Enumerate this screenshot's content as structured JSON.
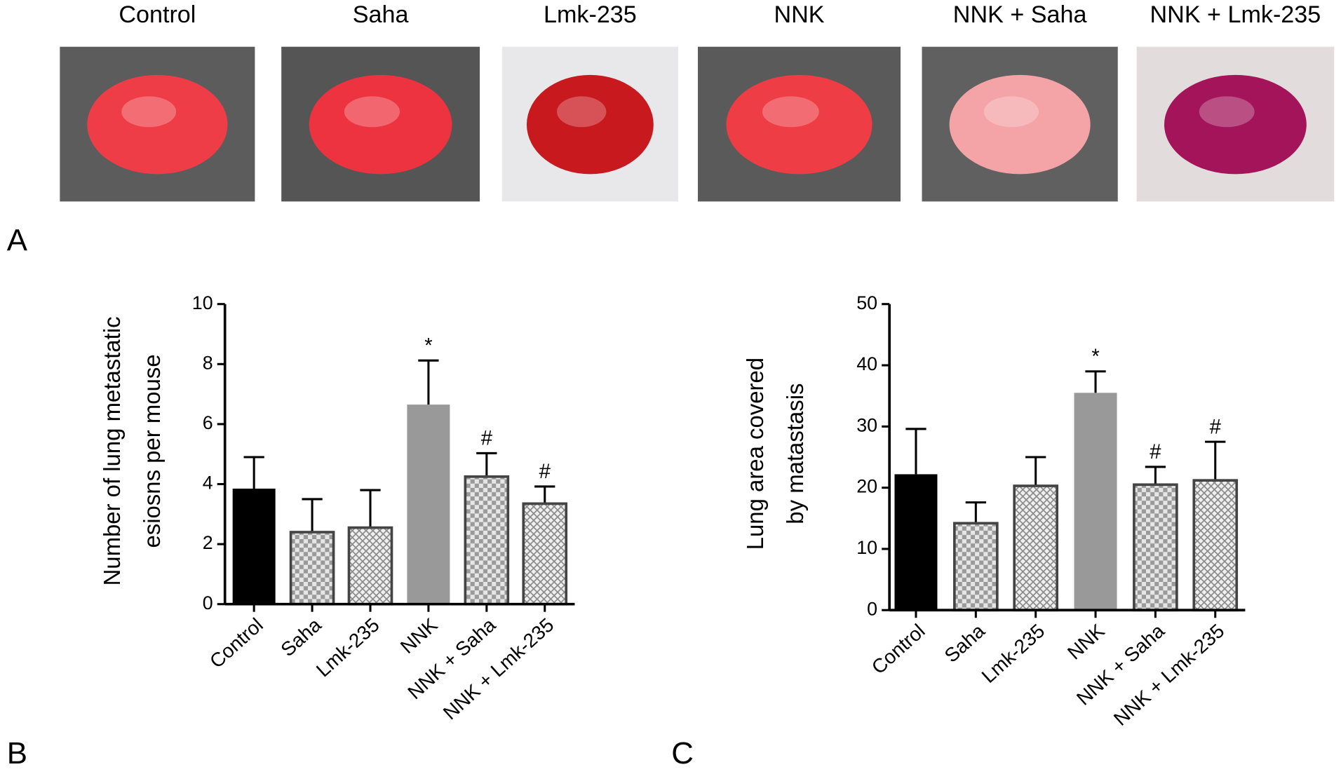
{
  "photos": [
    "Control",
    "Saha",
    "Lmk-235",
    "NNK",
    "NNK + Saha",
    "NNK + Lmk-235"
  ],
  "panel_labels": [
    "A",
    "B",
    "C"
  ],
  "chart_data": [
    {
      "type": "bar",
      "ylabel": [
        "Number of lung metastatic",
        "esiosns per mouse"
      ],
      "categories": [
        "Control",
        "Saha",
        "Lmk-235",
        "NNK",
        "NNK + Saha",
        "NNK + Lmk-235"
      ],
      "values": [
        3.85,
        2.4,
        2.55,
        6.65,
        4.25,
        3.35
      ],
      "errors": [
        1.05,
        1.1,
        1.25,
        1.47,
        0.78,
        0.57
      ],
      "annotations": [
        null,
        null,
        null,
        "*",
        "#",
        "#"
      ],
      "colors": [
        "#000000",
        "#9a9a9a",
        "#9a9a9a",
        "#999999",
        "#9a9a9a",
        "#9a9a9a"
      ],
      "bar_styles": [
        "solid",
        "checker",
        "cross",
        "solid",
        "checker",
        "cross"
      ],
      "ylim": [
        0,
        10
      ],
      "yticks": [
        0,
        2,
        4,
        6,
        8,
        10
      ]
    },
    {
      "type": "bar",
      "ylabel": [
        "Lung area covered",
        "by matastasis"
      ],
      "categories": [
        "Control",
        "Saha",
        "Lmk-235",
        "NNK",
        "NNK + Saha",
        "NNK + Lmk-235"
      ],
      "values": [
        22.2,
        14.2,
        20.3,
        35.5,
        20.5,
        21.2
      ],
      "errors": [
        7.4,
        3.4,
        4.7,
        3.5,
        2.9,
        6.3
      ],
      "annotations": [
        null,
        null,
        null,
        "*",
        "#",
        "#"
      ],
      "colors": [
        "#000000",
        "#9a9a9a",
        "#9a9a9a",
        "#999999",
        "#9a9a9a",
        "#9a9a9a"
      ],
      "bar_styles": [
        "solid",
        "checker",
        "cross",
        "solid",
        "checker",
        "cross"
      ],
      "ylim": [
        0,
        50
      ],
      "yticks": [
        0,
        10,
        20,
        30,
        40,
        50
      ]
    }
  ]
}
